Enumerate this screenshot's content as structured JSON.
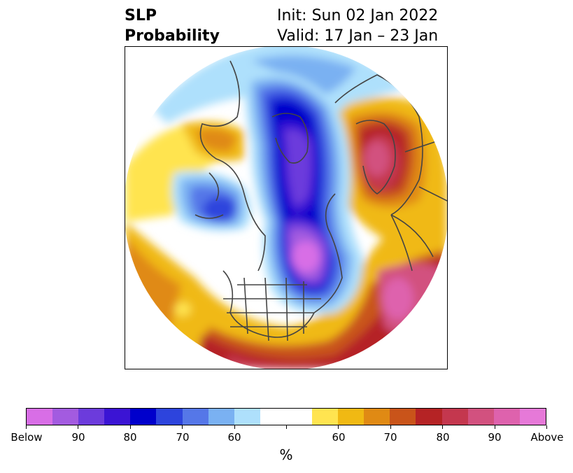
{
  "title": {
    "left_line1": "SLP",
    "left_line2": "Probability",
    "right_line1": "Init: Sun 02 Jan 2022",
    "right_line2": "Valid: 17 Jan – 23 Jan"
  },
  "colorbar": {
    "unit": "%",
    "colors": [
      "#d86ee6",
      "#a35be0",
      "#6c3bdc",
      "#3b14d4",
      "#0000cc",
      "#2d44dd",
      "#5577e8",
      "#7ab1f2",
      "#aee0fc",
      "#ffffff",
      "#ffffff",
      "#ffe450",
      "#f0b913",
      "#e08a14",
      "#c9541a",
      "#b52325",
      "#c4374e",
      "#d2517f",
      "#de62ad",
      "#e679d8"
    ],
    "tick_labels": [
      "Below",
      "90",
      "80",
      "70",
      "60",
      "",
      "60",
      "70",
      "80",
      "90",
      "Above"
    ]
  }
}
